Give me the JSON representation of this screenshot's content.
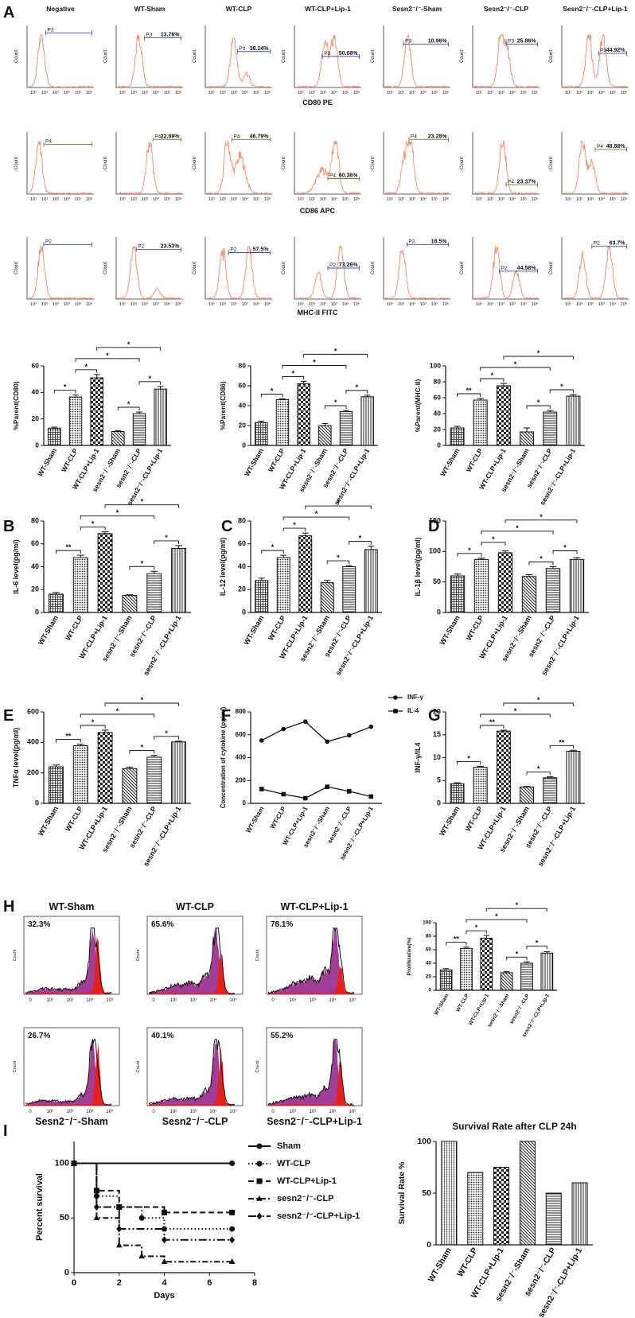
{
  "panel_labels": [
    "A",
    "B",
    "C",
    "D",
    "E",
    "F",
    "G",
    "H",
    "I"
  ],
  "flow_a": {
    "columns": [
      "Negative",
      "WT-Sham",
      "WT-CLP",
      "WT-CLP+Lip-1",
      "Sesn2⁻/⁻-Sham",
      "Sesn2⁻/⁻-CLP",
      "Sesn2⁻/⁻-CLP+Lip-1"
    ],
    "ylabel": "Count",
    "xtick_labels": [
      "10¹",
      "10²",
      "10³",
      "10⁴",
      "10⁵",
      "10⁶"
    ],
    "color": "#ef8a6c",
    "rows": [
      {
        "axis_label": "CD80 PE",
        "gate": "P3",
        "gate_color": "#3b4fb0",
        "percents": [
          null,
          "13.76%",
          "38.14%",
          "50.08%",
          "10.96%",
          "25.86%",
          "44.92%"
        ]
      },
      {
        "axis_label": "CD86 APC",
        "gate": "P4",
        "gate_color": "#7a7a3a",
        "percents": [
          null,
          "22.89%",
          "46.79%",
          "60.36%",
          "23.28%",
          "23.37%",
          "48.88%"
        ]
      },
      {
        "axis_label": "MHC-II FITC",
        "gate": "P2",
        "gate_color": "#3b4fb0",
        "percents": [
          null,
          "23.53%",
          "57.5%",
          "73.26%",
          "18.5%",
          "44.58%",
          "63.7%"
        ]
      }
    ]
  },
  "flow_h": {
    "titles": [
      "WT-Sham",
      "WT-CLP",
      "WT-CLP+Lip-1",
      "Sesn2⁻/⁻-Sham",
      "Sesn2⁻/⁻-CLP",
      "Sesn2⁻/⁻-CLP+Lip-1"
    ],
    "percents": [
      "32.3%",
      "65.6%",
      "78.1%",
      "26.7%",
      "40.1%",
      "55.2%"
    ],
    "ylabel": "Count",
    "xtick_labels": [
      "0",
      "10²",
      "10³",
      "10⁴",
      "10⁵"
    ],
    "fill_color": "#a23d98",
    "peak_color": "#e8201a"
  },
  "chart_data": [
    {
      "type": "bar",
      "ylabel": "%Parent(CD80)",
      "categories": [
        "WT-Sham",
        "WT-CLP",
        "WT-CLP+Lip-1",
        "sesn2⁻/⁻-Sham",
        "sesn2⁻/⁻-CLP",
        "sesn2⁻/⁻-CLP+Lip-1"
      ],
      "values": [
        13,
        36.5,
        51,
        10.5,
        24,
        42.5
      ],
      "errors": [
        0.8,
        1.5,
        2.5,
        0.7,
        1.2,
        2
      ],
      "patterns": [
        "grid",
        "dots",
        "checks",
        "diagonal",
        "horizontal",
        "vertical"
      ],
      "ylim": [
        0,
        60
      ],
      "yticks": [
        0,
        20,
        40,
        60
      ],
      "significance": [
        {
          "pair": [
            0,
            1
          ],
          "label": "*"
        },
        {
          "pair": [
            1,
            2
          ],
          "label": "*"
        },
        {
          "pair": [
            3,
            4
          ],
          "label": "*"
        },
        {
          "pair": [
            4,
            5
          ],
          "label": "*"
        },
        {
          "pair": [
            1,
            4
          ],
          "label": "*"
        },
        {
          "pair": [
            2,
            5
          ],
          "label": "*"
        }
      ]
    },
    {
      "type": "bar",
      "ylabel": "%Parent(CD86)",
      "categories": [
        "WT-Sham",
        "WT-CLP",
        "WT-CLP+Lip-1",
        "sesn2⁻/⁻-Sham",
        "sesn2⁻/⁻-CLP",
        "sesn2⁻/⁻-CLP+Lip-1"
      ],
      "values": [
        23,
        46,
        62,
        20,
        34,
        49
      ],
      "errors": [
        1.5,
        0.8,
        2.5,
        2,
        1.2,
        1.5
      ],
      "patterns": [
        "grid",
        "dots",
        "checks",
        "diagonal",
        "horizontal",
        "vertical"
      ],
      "ylim": [
        0,
        80
      ],
      "yticks": [
        0,
        20,
        40,
        60,
        80
      ],
      "significance": [
        {
          "pair": [
            0,
            1
          ],
          "label": "*"
        },
        {
          "pair": [
            1,
            2
          ],
          "label": "*"
        },
        {
          "pair": [
            3,
            4
          ],
          "label": "*"
        },
        {
          "pair": [
            4,
            5
          ],
          "label": "*"
        },
        {
          "pair": [
            1,
            4
          ],
          "label": "*"
        },
        {
          "pair": [
            2,
            5
          ],
          "label": "*"
        }
      ]
    },
    {
      "type": "bar",
      "ylabel": "%Parent(MHC-II)",
      "categories": [
        "WT-Sham",
        "WT-CLP",
        "WT-CLP+Lip-1",
        "sesn2⁻/⁻-Sham",
        "sesn2⁻/⁻-CLP",
        "sesn2⁻/⁻-CLP+Lip-1"
      ],
      "values": [
        22,
        57,
        75,
        17,
        42,
        62
      ],
      "errors": [
        2,
        2,
        3,
        5,
        2,
        2
      ],
      "patterns": [
        "grid",
        "dots",
        "checks",
        "diagonal",
        "horizontal",
        "vertical"
      ],
      "ylim": [
        0,
        100
      ],
      "yticks": [
        0,
        20,
        40,
        60,
        80,
        100
      ],
      "significance": [
        {
          "pair": [
            0,
            1
          ],
          "label": "**"
        },
        {
          "pair": [
            1,
            2
          ],
          "label": "*"
        },
        {
          "pair": [
            3,
            4
          ],
          "label": "*"
        },
        {
          "pair": [
            4,
            5
          ],
          "label": "*"
        },
        {
          "pair": [
            1,
            4
          ],
          "label": "*"
        },
        {
          "pair": [
            2,
            5
          ],
          "label": "*"
        }
      ]
    },
    {
      "type": "bar",
      "ylabel": "IL-6 level(pg/ml)",
      "categories": [
        "WT-Sham",
        "WT-CLP",
        "WT-CLP+Lip-1",
        "sesn2⁻/⁻-Sham",
        "sesn2⁻/⁻-CLP",
        "sesn2⁻/⁻-CLP+Lip-1"
      ],
      "values": [
        16,
        48,
        69,
        15,
        34,
        56
      ],
      "errors": [
        1.5,
        2,
        1.5,
        0.5,
        2,
        2.5
      ],
      "patterns": [
        "grid",
        "dots",
        "checks",
        "diagonal",
        "horizontal",
        "vertical"
      ],
      "ylim": [
        0,
        80
      ],
      "yticks": [
        0,
        20,
        40,
        60,
        80
      ],
      "significance": [
        {
          "pair": [
            0,
            1
          ],
          "label": "**"
        },
        {
          "pair": [
            1,
            2
          ],
          "label": "*"
        },
        {
          "pair": [
            3,
            4
          ],
          "label": "*"
        },
        {
          "pair": [
            4,
            5
          ],
          "label": "*"
        },
        {
          "pair": [
            1,
            4
          ],
          "label": "*"
        },
        {
          "pair": [
            2,
            5
          ],
          "label": "*"
        }
      ]
    },
    {
      "type": "bar",
      "ylabel": "IL-12 level(pg/ml)",
      "categories": [
        "WT-Sham",
        "WT-CLP",
        "WT-CLP+Lip-1",
        "sesn2⁻/⁻-Sham",
        "sesn2⁻/⁻-CLP",
        "sesn2⁻/⁻-CLP+Lip-1"
      ],
      "values": [
        28,
        48,
        67,
        26,
        40,
        55
      ],
      "errors": [
        2,
        2,
        2.5,
        2,
        1,
        3
      ],
      "patterns": [
        "grid",
        "dots",
        "checks",
        "diagonal",
        "horizontal",
        "vertical"
      ],
      "ylim": [
        0,
        80
      ],
      "yticks": [
        0,
        20,
        40,
        60,
        80
      ],
      "significance": [
        {
          "pair": [
            0,
            1
          ],
          "label": "*"
        },
        {
          "pair": [
            1,
            2
          ],
          "label": "*"
        },
        {
          "pair": [
            3,
            4
          ],
          "label": "*"
        },
        {
          "pair": [
            4,
            5
          ],
          "label": "*"
        },
        {
          "pair": [
            1,
            4
          ],
          "label": "*"
        },
        {
          "pair": [
            2,
            5
          ],
          "label": "*"
        }
      ]
    },
    {
      "type": "bar",
      "ylabel": "IL-1β level(pg/ml)",
      "categories": [
        "WT-Sham",
        "WT-CLP",
        "WT-CLP+Lip-1",
        "sesn2⁻/⁻-Sham",
        "sesn2⁻/⁻-CLP",
        "sesn2⁻/⁻-CLP+Lip-1"
      ],
      "values": [
        60,
        87,
        98,
        59,
        72,
        87
      ],
      "errors": [
        3,
        2,
        3,
        3,
        3,
        3
      ],
      "patterns": [
        "grid",
        "dots",
        "checks",
        "diagonal",
        "horizontal",
        "vertical"
      ],
      "ylim": [
        0,
        150
      ],
      "yticks": [
        0,
        50,
        100,
        150
      ],
      "significance": [
        {
          "pair": [
            0,
            1
          ],
          "label": "*"
        },
        {
          "pair": [
            1,
            2
          ],
          "label": "*"
        },
        {
          "pair": [
            3,
            4
          ],
          "label": "*"
        },
        {
          "pair": [
            4,
            5
          ],
          "label": "*"
        },
        {
          "pair": [
            1,
            4
          ],
          "label": "*"
        },
        {
          "pair": [
            2,
            5
          ],
          "label": "*"
        }
      ]
    },
    {
      "type": "bar",
      "ylabel": "TNFα level(pg/ml)",
      "categories": [
        "WT-Sham",
        "WT-CLP",
        "WT-CLP+Lip-1",
        "sesn2⁻/⁻-Sham",
        "sesn2⁻/⁻-CLP",
        "sesn2⁻/⁻-CLP+Lip-1"
      ],
      "values": [
        240,
        378,
        465,
        228,
        303,
        403
      ],
      "errors": [
        12,
        10,
        15,
        10,
        12,
        5
      ],
      "patterns": [
        "grid",
        "dots",
        "checks",
        "diagonal",
        "horizontal",
        "vertical"
      ],
      "ylim": [
        0,
        600
      ],
      "yticks": [
        0,
        200,
        400,
        600
      ],
      "significance": [
        {
          "pair": [
            0,
            1
          ],
          "label": "**"
        },
        {
          "pair": [
            1,
            2
          ],
          "label": "*"
        },
        {
          "pair": [
            3,
            4
          ],
          "label": "*"
        },
        {
          "pair": [
            4,
            5
          ],
          "label": "*"
        },
        {
          "pair": [
            1,
            4
          ],
          "label": "*"
        },
        {
          "pair": [
            2,
            5
          ],
          "label": "*"
        }
      ]
    },
    {
      "type": "line",
      "ylabel": "Concentration of cytokine (pg/ml)",
      "categories": [
        "WT-Sham",
        "WT-CLP",
        "WT-CLP+Lip-1",
        "sesn2⁻/⁻-Sham",
        "sesn2⁻/⁻-CLP",
        "sesn2⁻/⁻-CLP+Lip-1"
      ],
      "ylim": [
        0,
        800
      ],
      "yticks": [
        0,
        200,
        400,
        600,
        800
      ],
      "legend": "right",
      "series": [
        {
          "name": "INF-γ",
          "color": "#111111",
          "marker": "circle",
          "values": [
            550,
            650,
            715,
            540,
            595,
            670
          ]
        },
        {
          "name": "IL-4",
          "color": "#111111",
          "marker": "square",
          "values": [
            125,
            80,
            45,
            145,
            105,
            60
          ]
        }
      ]
    },
    {
      "type": "bar",
      "ylabel": "INF-γ/IL4",
      "categories": [
        "WT-Sham",
        "WT-CLP",
        "WT-CLP+Lip-1",
        "sesn2⁻/⁻-Sham",
        "sesn2⁻/⁻-CLP",
        "sesn2⁻/⁻-CLP+Lip-1"
      ],
      "values": [
        4.3,
        7.9,
        15.8,
        3.6,
        5.6,
        11.4
      ],
      "errors": [
        0.2,
        0.2,
        0.2,
        0.1,
        0.2,
        0.2
      ],
      "patterns": [
        "grid",
        "dots",
        "checks",
        "diagonal",
        "horizontal",
        "vertical"
      ],
      "ylim": [
        0,
        20
      ],
      "yticks": [
        0,
        5,
        10,
        15,
        20
      ],
      "significance": [
        {
          "pair": [
            0,
            1
          ],
          "label": "*"
        },
        {
          "pair": [
            1,
            2
          ],
          "label": "**"
        },
        {
          "pair": [
            3,
            4
          ],
          "label": "*"
        },
        {
          "pair": [
            4,
            5
          ],
          "label": "**"
        },
        {
          "pair": [
            1,
            4
          ],
          "label": "*"
        },
        {
          "pair": [
            2,
            5
          ],
          "label": "*"
        }
      ]
    },
    {
      "type": "bar",
      "ylabel": "Proliferative(%)",
      "categories": [
        "WT-Sham",
        "WT-CLP",
        "WT-CLP+Lip-1",
        "sesn2⁻/⁻-Sham",
        "sesn2⁻/⁻-CLP",
        "sesn2⁻/⁻-CLP+Lip-1"
      ],
      "values": [
        30,
        62,
        77,
        26,
        40,
        55
      ],
      "errors": [
        2,
        2,
        4,
        1.5,
        2,
        2
      ],
      "patterns": [
        "grid",
        "dots",
        "checks",
        "diagonal",
        "horizontal",
        "vertical"
      ],
      "ylim": [
        0,
        100
      ],
      "yticks": [
        0,
        20,
        40,
        60,
        80,
        100
      ],
      "significance": [
        {
          "pair": [
            0,
            1
          ],
          "label": "**"
        },
        {
          "pair": [
            1,
            2
          ],
          "label": "*"
        },
        {
          "pair": [
            3,
            4
          ],
          "label": "*"
        },
        {
          "pair": [
            4,
            5
          ],
          "label": "*"
        },
        {
          "pair": [
            1,
            4
          ],
          "label": "*"
        },
        {
          "pair": [
            2,
            5
          ],
          "label": "*"
        }
      ]
    },
    {
      "type": "step",
      "xlabel": "Days",
      "ylabel": "Percent survival",
      "xlim": [
        0,
        8
      ],
      "xticks": [
        0,
        2,
        4,
        6,
        8
      ],
      "ylim": [
        0,
        120
      ],
      "yticks": [
        0,
        50,
        100
      ],
      "legend": "right",
      "color": "#111111",
      "series": [
        {
          "name": "Sham",
          "marker": "circle",
          "dash": "solid",
          "x": [
            0,
            7
          ],
          "values": [
            100,
            100
          ]
        },
        {
          "name": "WT-CLP",
          "marker": "circle",
          "dash": "dotted",
          "x": [
            0,
            1,
            2,
            3,
            4,
            7
          ],
          "values": [
            100,
            70,
            60,
            50,
            40,
            40
          ]
        },
        {
          "name": "WT-CLP+Lip-1",
          "marker": "square",
          "dash": "dashed",
          "x": [
            0,
            1,
            2,
            4,
            7
          ],
          "values": [
            100,
            75,
            60,
            55,
            55
          ]
        },
        {
          "name": "sesn2⁻/⁻-CLP",
          "marker": "triangle",
          "dash": "dashdot",
          "x": [
            0,
            1,
            2,
            3,
            4,
            7
          ],
          "values": [
            100,
            50,
            25,
            15,
            10,
            10
          ]
        },
        {
          "name": "sesn2⁻/⁻-CLP+Lip-1",
          "marker": "diamond",
          "dash": "dashdotdot",
          "x": [
            0,
            1,
            2,
            4,
            7
          ],
          "values": [
            100,
            60,
            40,
            30,
            30
          ]
        }
      ]
    },
    {
      "type": "bar",
      "title": "Survival Rate after CLP 24h",
      "ylabel": "Survival Rate %",
      "categories": [
        "WT-Sham",
        "WT-CLP",
        "WT-CLP+Lip-1",
        "sesn2⁻/⁻-Sham",
        "sesn2⁻/⁻-CLP",
        "sesn2⁻/⁻-CLP+Lip-1"
      ],
      "values": [
        100,
        70,
        75,
        100,
        50,
        60
      ],
      "patterns": [
        "vgrid",
        "dots",
        "checks",
        "diagonal",
        "horizontal",
        "vertical"
      ],
      "ylim": [
        0,
        100
      ],
      "yticks": [
        0,
        50,
        100
      ]
    }
  ]
}
